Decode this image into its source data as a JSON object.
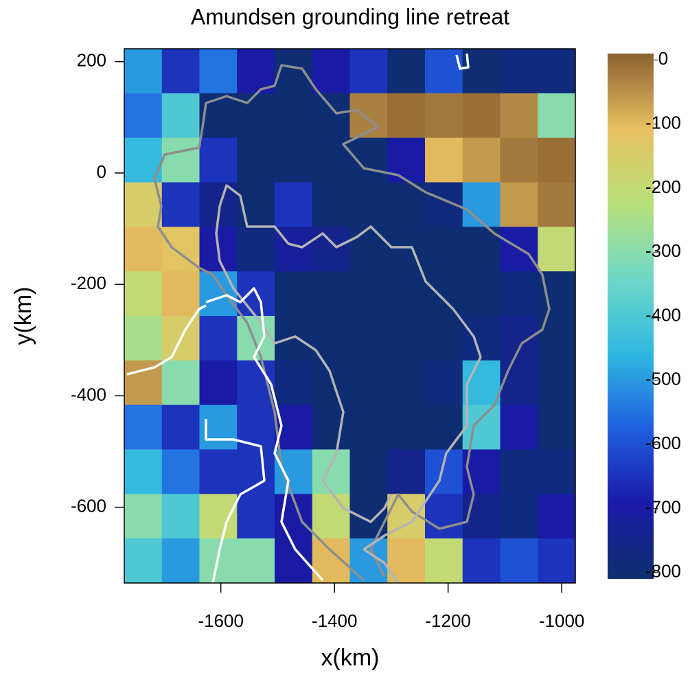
{
  "chart_data": {
    "type": "heatmap",
    "title": "Amundsen grounding line retreat",
    "x_label": "x(km)",
    "y_label": "y(km)",
    "xlim": [
      -1770,
      -976
    ],
    "ylim": [
      -736,
      223
    ],
    "xticks": [
      -1600,
      -1400,
      -1200,
      -1000
    ],
    "yticks": [
      200,
      0,
      -200,
      -400,
      -600
    ],
    "zlim": [
      -810,
      10
    ],
    "zticks": [
      0,
      -100,
      -200,
      -300,
      -400,
      -500,
      -600,
      -700,
      -800
    ],
    "colorscale": [
      "#0d2f6e",
      "#1a1aa8",
      "#1f5fe0",
      "#2fb8e0",
      "#6ed8c8",
      "#b8e07a",
      "#e8c060",
      "#8a6030"
    ],
    "z": [
      [
        -500,
        -650,
        -550,
        -700,
        -800,
        -700,
        -650,
        -800,
        -600,
        -800,
        -780,
        -780
      ],
      [
        -550,
        -400,
        -800,
        -800,
        -800,
        -800,
        -30,
        -10,
        -20,
        -10,
        -40,
        -300
      ],
      [
        -450,
        -300,
        -650,
        -800,
        -800,
        -800,
        -800,
        -700,
        -100,
        -60,
        -20,
        -10
      ],
      [
        -150,
        -650,
        -750,
        -800,
        -650,
        -800,
        -800,
        -800,
        -780,
        -500,
        -60,
        -20
      ],
      [
        -100,
        -120,
        -700,
        -780,
        -720,
        -750,
        -800,
        -800,
        -800,
        -800,
        -700,
        -200
      ],
      [
        -200,
        -100,
        -500,
        -650,
        -800,
        -800,
        -800,
        -800,
        -800,
        -800,
        -780,
        -800
      ],
      [
        -250,
        -150,
        -650,
        -300,
        -800,
        -800,
        -800,
        -800,
        -800,
        -780,
        -750,
        -800
      ],
      [
        -60,
        -300,
        -700,
        -650,
        -780,
        -800,
        -800,
        -800,
        -780,
        -450,
        -750,
        -800
      ],
      [
        -550,
        -650,
        -500,
        -650,
        -700,
        -800,
        -800,
        -800,
        -800,
        -400,
        -700,
        -800
      ],
      [
        -450,
        -550,
        -650,
        -650,
        -500,
        -300,
        -800,
        -750,
        -600,
        -700,
        -780,
        -780
      ],
      [
        -300,
        -400,
        -200,
        -650,
        -700,
        -200,
        -800,
        -150,
        -650,
        -750,
        -780,
        -700
      ],
      [
        -400,
        -500,
        -300,
        -300,
        -700,
        -100,
        -500,
        -100,
        -200,
        -650,
        -600,
        -650
      ]
    ]
  }
}
